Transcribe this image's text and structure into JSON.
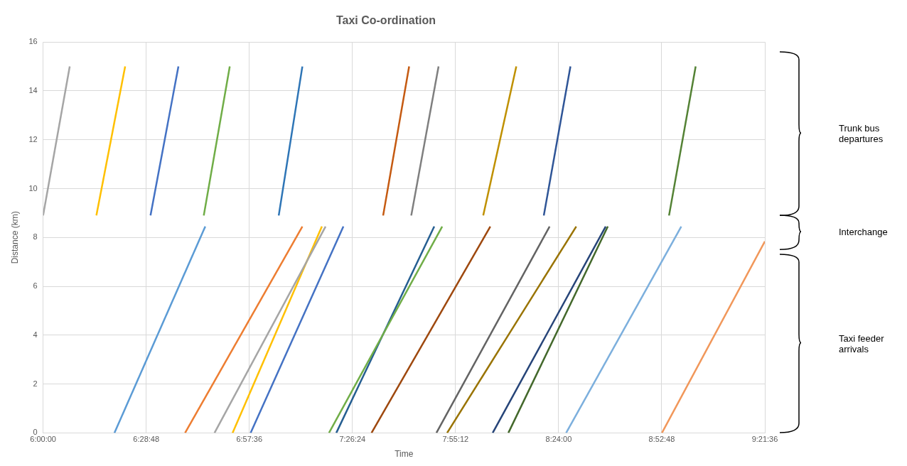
{
  "chart_data": {
    "type": "line",
    "title": "Taxi Co-ordination",
    "xlabel": "Time",
    "ylabel": "Distance (km)",
    "xlim": [
      6,
      9.36
    ],
    "xticks": [
      {
        "value": 6,
        "label": "6:00:00"
      },
      {
        "value": 6.48,
        "label": "6:28:48"
      },
      {
        "value": 6.96,
        "label": "6:57:36"
      },
      {
        "value": 7.44,
        "label": "7:26:24"
      },
      {
        "value": 7.92,
        "label": "7:55:12"
      },
      {
        "value": 8.4,
        "label": "8:24:00"
      },
      {
        "value": 8.88,
        "label": "8:52:48"
      },
      {
        "value": 9.36,
        "label": "9:21:36"
      }
    ],
    "ylim": [
      0,
      16
    ],
    "yticks": [
      0,
      2,
      4,
      6,
      8,
      10,
      12,
      14,
      16
    ],
    "grid": true,
    "legend": false,
    "marker": "none",
    "line_style": "solid",
    "annotations": [
      "Trunk bus departures",
      "Interchange",
      "Taxi feeder arrivals"
    ],
    "series": [
      {
        "color": "#a5a5a5",
        "x": [
          6.0,
          6.124
        ],
        "values": [
          8.9,
          15
        ]
      },
      {
        "color": "#ffc000",
        "x": [
          6.248,
          6.382
        ],
        "values": [
          8.9,
          15
        ]
      },
      {
        "color": "#4472c4",
        "x": [
          6.5,
          6.63
        ],
        "values": [
          8.9,
          15
        ]
      },
      {
        "color": "#70ad47",
        "x": [
          6.748,
          6.869
        ],
        "values": [
          8.9,
          15
        ]
      },
      {
        "color": "#2e75b6",
        "x": [
          7.097,
          7.207
        ],
        "values": [
          8.9,
          15
        ]
      },
      {
        "color": "#c55a11",
        "x": [
          7.583,
          7.704
        ],
        "values": [
          8.9,
          15
        ]
      },
      {
        "color": "#7f7f7f",
        "x": [
          7.714,
          7.841
        ],
        "values": [
          8.9,
          15
        ]
      },
      {
        "color": "#bf9000",
        "x": [
          8.049,
          8.203
        ],
        "values": [
          8.9,
          15
        ]
      },
      {
        "color": "#2f5597",
        "x": [
          8.331,
          8.455
        ],
        "values": [
          8.9,
          15
        ]
      },
      {
        "color": "#548235",
        "x": [
          8.914,
          9.038
        ],
        "values": [
          8.9,
          15
        ]
      },
      {
        "color": "#5b9bd5",
        "x": [
          6.332,
          6.755
        ],
        "values": [
          0,
          8.45
        ]
      },
      {
        "color": "#ed7d31",
        "x": [
          6.661,
          7.207
        ],
        "values": [
          0,
          8.45
        ]
      },
      {
        "color": "#a5a5a5",
        "x": [
          6.798,
          7.315
        ],
        "values": [
          0,
          8.45
        ]
      },
      {
        "color": "#ffc000",
        "x": [
          6.882,
          7.298
        ],
        "values": [
          0,
          8.45
        ]
      },
      {
        "color": "#4472c4",
        "x": [
          6.966,
          7.398
        ],
        "values": [
          0,
          8.45
        ]
      },
      {
        "color": "#70ad47",
        "x": [
          7.331,
          7.858
        ],
        "values": [
          0,
          8.45
        ]
      },
      {
        "color": "#255e91",
        "x": [
          7.365,
          7.821
        ],
        "values": [
          0,
          8.45
        ]
      },
      {
        "color": "#9e480e",
        "x": [
          7.529,
          8.082
        ],
        "values": [
          0,
          8.45
        ]
      },
      {
        "color": "#636363",
        "x": [
          7.831,
          8.358
        ],
        "values": [
          0,
          8.45
        ]
      },
      {
        "color": "#997300",
        "x": [
          7.881,
          8.482
        ],
        "values": [
          0,
          8.45
        ]
      },
      {
        "color": "#264478",
        "x": [
          8.093,
          8.619
        ],
        "values": [
          0,
          8.45
        ]
      },
      {
        "color": "#43682b",
        "x": [
          8.166,
          8.629
        ],
        "values": [
          0,
          8.45
        ]
      },
      {
        "color": "#7cafdd",
        "x": [
          8.435,
          8.971
        ],
        "values": [
          0,
          8.45
        ]
      },
      {
        "color": "#f1975a",
        "x": [
          8.881,
          9.36
        ],
        "values": [
          0,
          7.84
        ]
      }
    ]
  }
}
